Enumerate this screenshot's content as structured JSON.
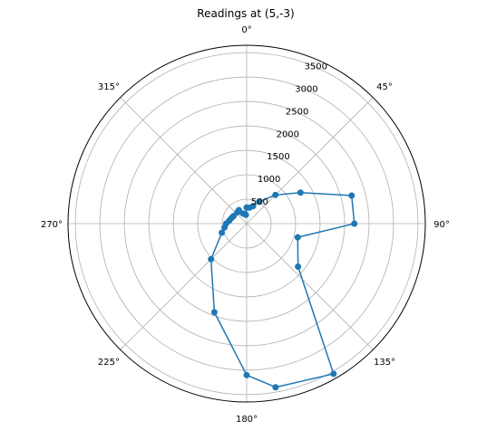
{
  "chart_data": {
    "type": "line",
    "subtype": "polar",
    "title": "Readings at (5,-3)",
    "theta_ticks": [
      "0°",
      "45°",
      "90°",
      "135°",
      "180°",
      "225°",
      "270°",
      "315°"
    ],
    "r_ticks": [
      "500",
      "1000",
      "1500",
      "2000",
      "2500",
      "3000",
      "3500"
    ],
    "r_max": 3650,
    "theta_direction": "clockwise",
    "theta_zero": "top",
    "grid": true,
    "series": [
      {
        "color": "#1f77b4",
        "marker": "circle",
        "theta_deg": [
          0,
          10,
          20,
          30,
          45,
          60,
          75,
          90,
          105,
          130,
          150,
          170,
          180,
          200,
          225,
          250,
          260,
          270,
          280,
          290,
          300,
          320,
          330,
          340,
          350,
          355,
          0
        ],
        "r": [
          330,
          330,
          380,
          520,
          830,
          1270,
          2220,
          2200,
          1080,
          1370,
          3550,
          3400,
          3100,
          1930,
          1030,
          540,
          460,
          420,
          360,
          330,
          310,
          300,
          320,
          220,
          200,
          180,
          330
        ]
      }
    ]
  },
  "colors": {
    "grid": "#b0b0b0",
    "frame": "#000000",
    "line": "#1f77b4"
  }
}
